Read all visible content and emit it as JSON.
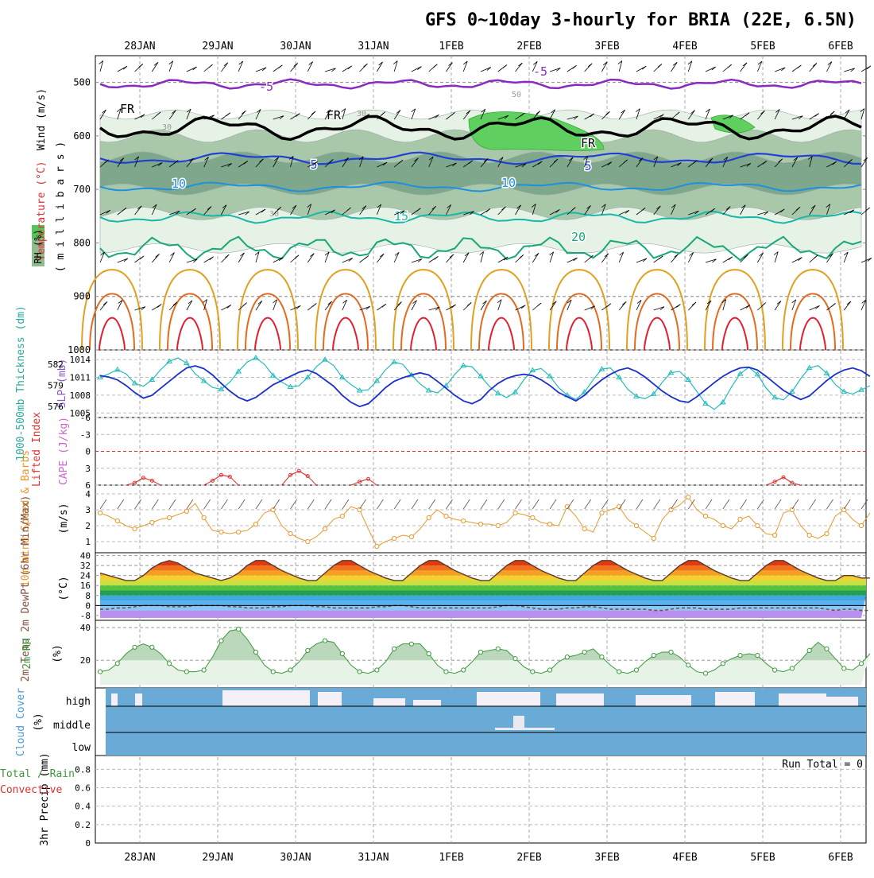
{
  "title": "GFS 0~10day 3-hourly for BRIA (22E, 6.5N)",
  "dates": [
    "28JAN",
    "29JAN",
    "30JAN",
    "31JAN",
    "1FEB",
    "2FEB",
    "3FEB",
    "4FEB",
    "5FEB",
    "6FEB"
  ],
  "colors": {
    "rh_light": "#e6f2e6",
    "rh_mid": "#a9c8a9",
    "rh_dark": "#7fa78c",
    "rh_green": "#5fd05f",
    "iso_m5": "#8a2bbf",
    "iso_fr": "#000000",
    "iso_5": "#1f3fd6",
    "iso_10": "#1e90e0",
    "iso_15": "#18b8a8",
    "iso_20": "#18a878",
    "iso_25": "#20c090",
    "iso_30": "#e0a020",
    "iso_35": "#e06a20",
    "iso_40": "#e02030",
    "thickness": "#1a2fcc",
    "slp": "#22bbbb",
    "cape": "#cc3366",
    "lifted": "#e03030",
    "wind10": "#e69a2e",
    "rh2m": "#3a9a3a",
    "cloud": "#6aaad6",
    "dewpt": "#7f4f3f"
  },
  "panels": {
    "upper": {
      "label_wind": "Wind (m/s)",
      "label_temp": "Temperature (°C)",
      "label_rh": "RH (%)",
      "ylabel": "( m i l l i b a r s )",
      "pressure_ticks": [
        "500",
        "600",
        "700",
        "800",
        "900",
        "1000"
      ],
      "contour_labels": [
        "-5",
        "-5",
        "FR",
        "FR",
        "FR",
        "5",
        "5",
        "10",
        "10",
        "15",
        "20",
        "30",
        "30",
        "30",
        "50",
        "50"
      ]
    },
    "thickness": {
      "label_left": "1000-500mb Thickness (dm)",
      "label_right": "SLP (mb)",
      "left_ticks": [
        "582",
        "579",
        "576"
      ],
      "right_ticks": [
        "1014",
        "1011",
        "1008",
        "1005"
      ]
    },
    "stability": {
      "label_left": "Lifted Index",
      "label_right": "CAPE (J/kg)",
      "ticks": [
        "-6",
        "-3",
        "0",
        "3",
        "6"
      ]
    },
    "wind10m": {
      "label": "10m Wind Speed & Barbs",
      "unit": "(m/s)",
      "ticks": [
        "4",
        "3",
        "2",
        "1"
      ]
    },
    "temp2m": {
      "label": "2m Temp 2m DewPt (6hr Min/Max)",
      "unit": "(°C)",
      "ticks": [
        "40",
        "32",
        "24",
        "16",
        "8",
        "0",
        "-8"
      ]
    },
    "rh2m": {
      "label": "2m RH",
      "unit": "(%)",
      "ticks": [
        "40",
        "20"
      ]
    },
    "cloud": {
      "label": "Cloud Cover",
      "unit": "(%)",
      "levels": [
        "high",
        "middle",
        "low"
      ]
    },
    "precip": {
      "label": "3hr Precip (mm)",
      "label2": "Total / Rain",
      "label3": "Convective",
      "run_total": "Run Total = 0",
      "ticks": [
        "0.8",
        "0.6",
        "0.4",
        "0.2",
        "0"
      ]
    }
  },
  "chart_data": {
    "type": "line",
    "x": "3-hourly steps 27JAN 15Z to 6FEB 06Z",
    "thickness_dm": [
      580.4,
      580.2,
      579.8,
      579.0,
      578.0,
      577.2,
      577.6,
      578.6,
      579.6,
      580.6,
      581.5,
      581.8,
      581.4,
      580.5,
      579.3,
      578.2,
      577.3,
      576.8,
      577.3,
      578.2,
      579.1,
      579.7,
      580.3,
      580.9,
      581.2,
      580.7,
      579.8,
      578.9,
      577.6,
      576.6,
      576.0,
      576.4,
      577.5,
      578.7,
      579.6,
      580.1,
      580.5,
      580.8,
      580.5,
      579.6,
      578.6,
      577.6,
      576.8,
      576.4,
      577.0,
      578.3,
      579.3,
      580.0,
      580.4,
      580.6,
      580.4,
      579.8,
      579.0,
      578.0,
      577.4,
      576.8,
      577.6,
      578.8,
      579.8,
      580.6,
      581.2,
      581.5,
      581.0,
      580.2,
      579.2,
      578.2,
      577.4,
      576.8,
      576.6,
      577.4,
      578.4,
      579.4,
      580.3,
      581.0,
      581.5,
      581.6,
      581.2,
      580.3,
      579.3,
      578.3,
      577.6,
      577.0,
      577.5,
      578.6,
      579.7,
      580.6,
      581.2,
      581.5,
      581.1,
      580.3
    ],
    "slp_mb": [
      1011.0,
      1011.6,
      1012.3,
      1011.6,
      1010.0,
      1009.5,
      1010.6,
      1012.3,
      1013.7,
      1014.3,
      1013.4,
      1011.6,
      1010.4,
      1009.3,
      1009.0,
      1010.2,
      1012.0,
      1013.6,
      1014.3,
      1013.2,
      1011.3,
      1010.2,
      1009.4,
      1009.6,
      1011.0,
      1012.8,
      1014.0,
      1013.0,
      1011.0,
      1009.8,
      1008.8,
      1008.9,
      1010.4,
      1012.3,
      1013.6,
      1013.2,
      1011.4,
      1009.9,
      1008.8,
      1008.4,
      1009.6,
      1011.5,
      1013.0,
      1012.8,
      1011.2,
      1009.5,
      1008.3,
      1007.6,
      1008.5,
      1010.6,
      1012.2,
      1012.5,
      1011.2,
      1009.3,
      1008.0,
      1007.3,
      1008.5,
      1010.6,
      1012.4,
      1012.6,
      1011.0,
      1009.0,
      1007.8,
      1007.4,
      1008.2,
      1010.2,
      1011.8,
      1012.0,
      1010.6,
      1008.6,
      1006.6,
      1005.6,
      1006.8,
      1009.4,
      1011.6,
      1012.7,
      1011.5,
      1009.2,
      1007.6,
      1007.2,
      1008.6,
      1010.8,
      1012.6,
      1013.0,
      1011.7,
      1009.8,
      1008.6,
      1008.2,
      1008.9,
      1009.6
    ],
    "lifted_index": [
      6,
      6,
      6,
      6,
      5.6,
      4.7,
      5.2,
      6,
      6,
      6,
      6,
      6,
      6,
      5.2,
      4.2,
      4.5,
      6,
      6,
      6,
      6,
      6,
      6,
      4.2,
      3.5,
      4.4,
      6,
      6,
      6,
      6,
      6,
      5.4,
      4.9,
      6,
      6,
      6,
      6,
      6,
      6,
      6,
      6,
      6,
      6,
      6,
      6,
      6,
      6,
      6,
      6,
      6,
      6,
      6,
      6,
      6,
      6,
      6,
      6,
      6,
      6,
      6,
      6,
      6,
      6,
      6,
      6,
      6,
      6,
      6,
      6,
      6,
      6,
      6,
      6,
      6,
      6,
      6,
      6,
      6,
      6,
      5.4,
      4.6,
      5.6,
      6,
      6,
      6,
      6,
      6,
      6,
      6,
      6,
      6
    ],
    "wind10m_ms": [
      2.8,
      2.6,
      2.3,
      2.0,
      1.8,
      2.0,
      2.2,
      2.4,
      2.5,
      2.7,
      2.9,
      3.4,
      2.5,
      1.7,
      1.6,
      1.5,
      1.6,
      1.7,
      2.1,
      2.8,
      3.0,
      2.0,
      1.5,
      1.2,
      1.0,
      1.3,
      1.8,
      2.4,
      2.6,
      3.2,
      3.0,
      1.8,
      0.7,
      1.0,
      1.2,
      1.4,
      1.3,
      1.8,
      2.5,
      3.0,
      2.6,
      2.4,
      2.3,
      2.2,
      2.1,
      2.1,
      2.0,
      2.2,
      2.8,
      2.7,
      2.5,
      2.2,
      2.1,
      2.0,
      3.2,
      2.6,
      1.8,
      1.6,
      2.8,
      3.0,
      3.2,
      2.4,
      2.0,
      1.6,
      1.2,
      2.4,
      3.0,
      3.3,
      3.8,
      3.0,
      2.6,
      2.4,
      2.0,
      1.8,
      2.4,
      2.6,
      2.0,
      1.5,
      1.4,
      2.8,
      3.0,
      2.0,
      1.4,
      1.2,
      1.5,
      2.6,
      3.0,
      2.4,
      2.0,
      2.8
    ],
    "temp2m_c": [
      26,
      24,
      22,
      20,
      20,
      24,
      30,
      34,
      36,
      34,
      30,
      26,
      24,
      22,
      20,
      22,
      26,
      32,
      36,
      36,
      32,
      28,
      25,
      22,
      20,
      20,
      26,
      32,
      36,
      36,
      32,
      28,
      25,
      22,
      20,
      20,
      26,
      32,
      36,
      36,
      32,
      28,
      25,
      22,
      20,
      20,
      26,
      32,
      36,
      36,
      32,
      28,
      25,
      22,
      20,
      20,
      26,
      32,
      36,
      36,
      32,
      28,
      25,
      22,
      20,
      20,
      26,
      32,
      36,
      36,
      32,
      28,
      25,
      22,
      20,
      20,
      26,
      32,
      36,
      36,
      32,
      28,
      25,
      22,
      20,
      20,
      24,
      24,
      22,
      22
    ],
    "dewpt2m_c": [
      -3,
      -3,
      -2,
      -2,
      -1,
      0,
      0,
      0,
      -1,
      -1,
      -1,
      0,
      0,
      0,
      0,
      -1,
      -1,
      -2,
      -2,
      -2,
      -1,
      -1,
      0,
      0,
      0,
      -1,
      -1,
      -2,
      -2,
      -2,
      -2,
      -2,
      -1,
      -1,
      0,
      0,
      -1,
      -2,
      -2,
      -2,
      -2,
      -2,
      -2,
      -2,
      -2,
      -2,
      -1,
      0,
      0,
      -1,
      -2,
      -3,
      -3,
      -3,
      -2,
      -2,
      -1,
      -1,
      -2,
      -3,
      -3,
      -3,
      -3,
      -3,
      -4,
      -4,
      -3,
      -2,
      -2,
      -2,
      -3,
      -3,
      -3,
      -3,
      -2,
      -2,
      -2,
      -2,
      -2,
      -2,
      -2,
      -2,
      -2,
      -2,
      -3,
      -4,
      -3,
      -3,
      -4,
      -4
    ],
    "rh2m_pct": [
      13,
      14,
      18,
      24,
      28,
      30,
      28,
      24,
      18,
      14,
      13,
      13,
      14,
      22,
      32,
      38,
      39,
      33,
      25,
      17,
      13,
      12,
      14,
      19,
      26,
      30,
      32,
      31,
      24,
      17,
      13,
      12,
      14,
      19,
      27,
      30,
      30,
      30,
      24,
      17,
      13,
      12,
      14,
      19,
      25,
      26,
      27,
      26,
      21,
      16,
      13,
      12,
      14,
      19,
      22,
      23,
      25,
      27,
      22,
      17,
      13,
      12,
      14,
      19,
      23,
      25,
      25,
      22,
      17,
      13,
      12,
      14,
      18,
      21,
      23,
      24,
      23,
      18,
      14,
      13,
      15,
      20,
      26,
      31,
      27,
      21,
      15,
      14,
      18,
      24
    ],
    "precip_mm": [],
    "units": {
      "thickness": "dm",
      "slp": "mb",
      "wind": "m/s",
      "temp": "°C",
      "rh": "%",
      "precip": "mm"
    }
  }
}
